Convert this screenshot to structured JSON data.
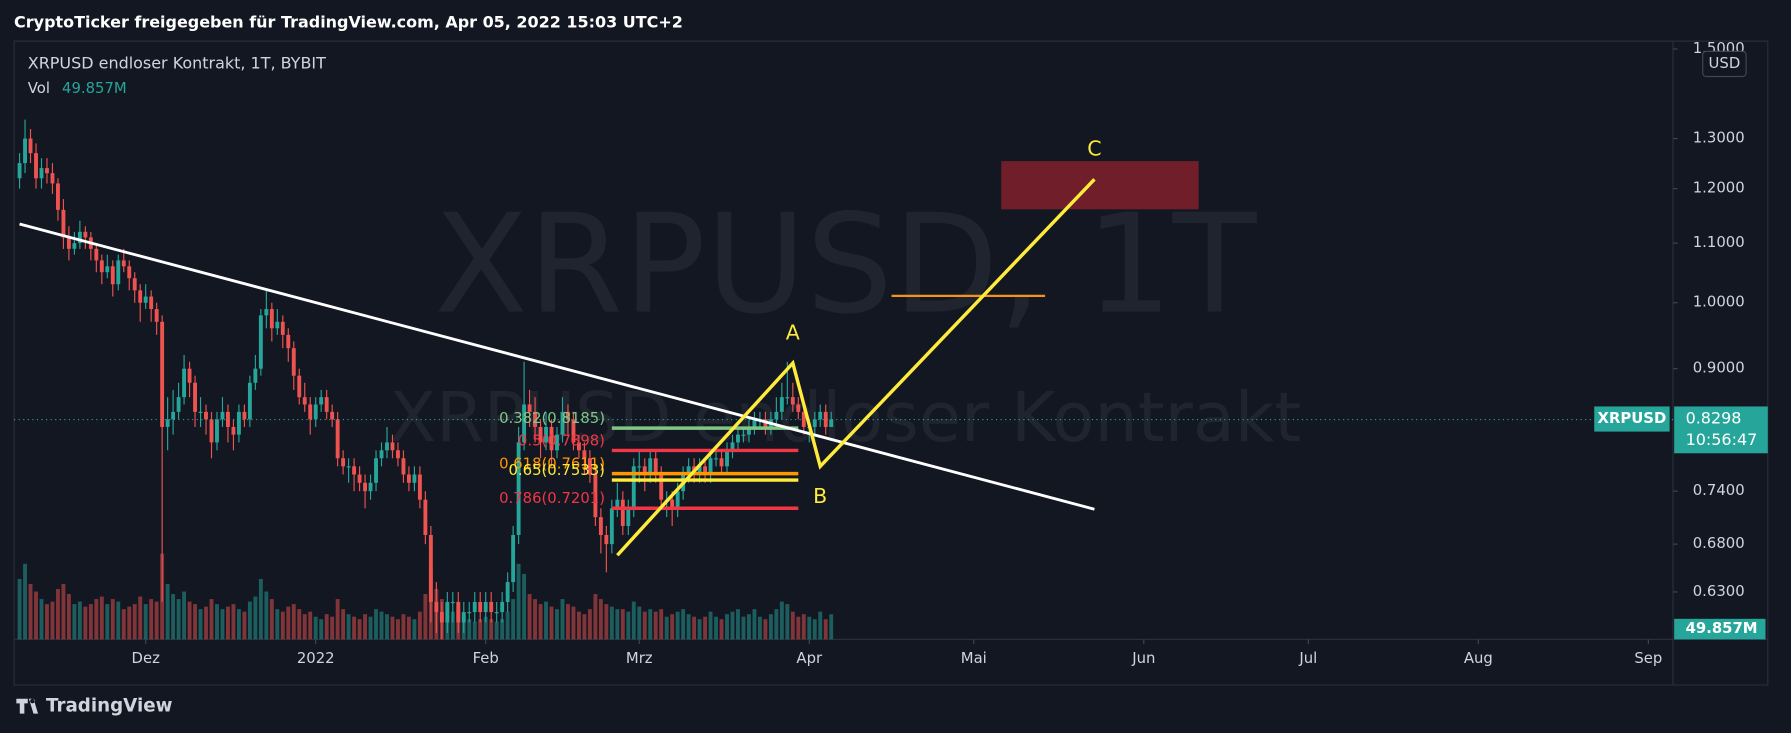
{
  "header": "CryptoTicker freigegeben für TradingView.com, Apr 05, 2022 15:03 UTC+2",
  "footer": "TradingView",
  "chart_data": {
    "type": "candlestick",
    "legend_title": "XRPUSD endloser Kontrakt, 1T, BYBIT",
    "volume_name": "Vol",
    "volume_label": "49.857M",
    "currency": "USD",
    "watermark": "XRPUSD, 1T",
    "watermark_sub": "XRPUSD endloser Kontrakt",
    "symbol": "XRPUSD",
    "last_price": 0.8298,
    "countdown": "10:56:47",
    "up_color": "#26a69a",
    "down_color": "#ef5350",
    "log": true,
    "grid": false,
    "xlim": [
      -24,
      278.5
    ],
    "ylim": [
      0.584,
      1.519
    ],
    "xticks": [
      {
        "value": 0,
        "label": "Dez"
      },
      {
        "value": 31,
        "label": "2022"
      },
      {
        "value": 62,
        "label": "Feb"
      },
      {
        "value": 90,
        "label": "Mrz"
      },
      {
        "value": 121,
        "label": "Apr"
      },
      {
        "value": 151,
        "label": "Mai"
      },
      {
        "value": 182,
        "label": "Jun"
      },
      {
        "value": 212,
        "label": "Jul"
      },
      {
        "value": 243,
        "label": "Aug"
      },
      {
        "value": 274,
        "label": "Sep"
      }
    ],
    "yticks": [
      {
        "value": 0.63,
        "label": "0.6300"
      },
      {
        "value": 0.68,
        "label": "0.6800"
      },
      {
        "value": 0.74,
        "label": "0.7400"
      },
      {
        "value": 0.9,
        "label": "0.9000"
      },
      {
        "value": 1.0,
        "label": "1.0000"
      },
      {
        "value": 1.1,
        "label": "1.1000"
      },
      {
        "value": 1.2,
        "label": "1.2000"
      },
      {
        "value": 1.3,
        "label": "1.3000"
      },
      {
        "value": 1.5,
        "label": "1.5000"
      }
    ],
    "x": [
      -23,
      -22,
      -21,
      -20,
      -19,
      -18,
      -17,
      -16,
      -15,
      -14,
      -13,
      -12,
      -11,
      -10,
      -9,
      -8,
      -7,
      -6,
      -5,
      -4,
      -3,
      -2,
      -1,
      0,
      1,
      2,
      3,
      4,
      5,
      6,
      7,
      8,
      9,
      10,
      11,
      12,
      13,
      14,
      15,
      16,
      17,
      18,
      19,
      20,
      21,
      22,
      23,
      24,
      25,
      26,
      27,
      28,
      29,
      30,
      31,
      32,
      33,
      34,
      35,
      36,
      37,
      38,
      39,
      40,
      41,
      42,
      43,
      44,
      45,
      46,
      47,
      48,
      49,
      50,
      51,
      52,
      53,
      54,
      55,
      56,
      57,
      58,
      59,
      60,
      61,
      62,
      63,
      64,
      65,
      66,
      67,
      68,
      69,
      70,
      71,
      72,
      73,
      74,
      75,
      76,
      77,
      78,
      79,
      80,
      81,
      82,
      83,
      84,
      85,
      86,
      87,
      88,
      89,
      90,
      91,
      92,
      93,
      94,
      95,
      96,
      97,
      98,
      99,
      100,
      101,
      102,
      103,
      104,
      105,
      106,
      107,
      108,
      109,
      110,
      111,
      112,
      113,
      114,
      115,
      116,
      117,
      118,
      119,
      120,
      121,
      122,
      123,
      124,
      125
    ],
    "ohlc": [
      [
        1.22,
        1.27,
        1.2,
        1.25
      ],
      [
        1.25,
        1.34,
        1.23,
        1.3
      ],
      [
        1.3,
        1.32,
        1.25,
        1.27
      ],
      [
        1.27,
        1.29,
        1.2,
        1.22
      ],
      [
        1.22,
        1.26,
        1.2,
        1.24
      ],
      [
        1.24,
        1.26,
        1.21,
        1.23
      ],
      [
        1.23,
        1.25,
        1.19,
        1.21
      ],
      [
        1.21,
        1.22,
        1.14,
        1.16
      ],
      [
        1.16,
        1.18,
        1.09,
        1.11
      ],
      [
        1.11,
        1.13,
        1.07,
        1.09
      ],
      [
        1.09,
        1.12,
        1.08,
        1.1
      ],
      [
        1.1,
        1.14,
        1.09,
        1.12
      ],
      [
        1.12,
        1.13,
        1.09,
        1.11
      ],
      [
        1.11,
        1.12,
        1.07,
        1.09
      ],
      [
        1.09,
        1.1,
        1.05,
        1.07
      ],
      [
        1.07,
        1.08,
        1.03,
        1.05
      ],
      [
        1.05,
        1.08,
        1.04,
        1.06
      ],
      [
        1.06,
        1.07,
        1.01,
        1.03
      ],
      [
        1.03,
        1.08,
        1.02,
        1.07
      ],
      [
        1.07,
        1.09,
        1.05,
        1.06
      ],
      [
        1.06,
        1.07,
        1.02,
        1.04
      ],
      [
        1.04,
        1.05,
        1.0,
        1.02
      ],
      [
        1.02,
        1.03,
        0.97,
        1.0
      ],
      [
        1.0,
        1.03,
        0.99,
        1.01
      ],
      [
        1.01,
        1.02,
        0.97,
        0.99
      ],
      [
        0.99,
        1.0,
        0.95,
        0.97
      ],
      [
        0.97,
        0.98,
        0.62,
        0.82
      ],
      [
        0.82,
        0.86,
        0.79,
        0.83
      ],
      [
        0.83,
        0.87,
        0.81,
        0.84
      ],
      [
        0.84,
        0.88,
        0.83,
        0.86
      ],
      [
        0.86,
        0.92,
        0.85,
        0.9
      ],
      [
        0.9,
        0.91,
        0.86,
        0.88
      ],
      [
        0.88,
        0.89,
        0.82,
        0.84
      ],
      [
        0.84,
        0.86,
        0.82,
        0.84
      ],
      [
        0.84,
        0.85,
        0.81,
        0.83
      ],
      [
        0.83,
        0.84,
        0.78,
        0.8
      ],
      [
        0.8,
        0.84,
        0.79,
        0.83
      ],
      [
        0.83,
        0.86,
        0.82,
        0.84
      ],
      [
        0.84,
        0.85,
        0.8,
        0.82
      ],
      [
        0.82,
        0.83,
        0.79,
        0.81
      ],
      [
        0.81,
        0.85,
        0.8,
        0.84
      ],
      [
        0.84,
        0.85,
        0.82,
        0.83
      ],
      [
        0.83,
        0.89,
        0.82,
        0.88
      ],
      [
        0.88,
        0.92,
        0.87,
        0.9
      ],
      [
        0.9,
        0.99,
        0.89,
        0.98
      ],
      [
        0.98,
        1.02,
        0.96,
        0.99
      ],
      [
        0.99,
        1.0,
        0.94,
        0.96
      ],
      [
        0.96,
        0.99,
        0.95,
        0.97
      ],
      [
        0.97,
        0.98,
        0.93,
        0.95
      ],
      [
        0.95,
        0.96,
        0.91,
        0.93
      ],
      [
        0.93,
        0.94,
        0.87,
        0.89
      ],
      [
        0.89,
        0.9,
        0.85,
        0.86
      ],
      [
        0.86,
        0.88,
        0.84,
        0.85
      ],
      [
        0.85,
        0.86,
        0.81,
        0.83
      ],
      [
        0.83,
        0.86,
        0.82,
        0.85
      ],
      [
        0.85,
        0.87,
        0.84,
        0.86
      ],
      [
        0.86,
        0.87,
        0.83,
        0.84
      ],
      [
        0.84,
        0.85,
        0.82,
        0.83
      ],
      [
        0.83,
        0.84,
        0.77,
        0.78
      ],
      [
        0.78,
        0.79,
        0.76,
        0.77
      ],
      [
        0.77,
        0.78,
        0.75,
        0.77
      ],
      [
        0.77,
        0.78,
        0.74,
        0.76
      ],
      [
        0.76,
        0.77,
        0.74,
        0.75
      ],
      [
        0.75,
        0.76,
        0.72,
        0.74
      ],
      [
        0.74,
        0.76,
        0.73,
        0.75
      ],
      [
        0.75,
        0.79,
        0.74,
        0.78
      ],
      [
        0.78,
        0.8,
        0.77,
        0.79
      ],
      [
        0.79,
        0.82,
        0.78,
        0.8
      ],
      [
        0.8,
        0.81,
        0.78,
        0.79
      ],
      [
        0.79,
        0.8,
        0.77,
        0.78
      ],
      [
        0.78,
        0.79,
        0.75,
        0.76
      ],
      [
        0.76,
        0.77,
        0.74,
        0.75
      ],
      [
        0.75,
        0.77,
        0.74,
        0.76
      ],
      [
        0.76,
        0.77,
        0.72,
        0.73
      ],
      [
        0.73,
        0.74,
        0.68,
        0.69
      ],
      [
        0.69,
        0.7,
        0.6,
        0.62
      ],
      [
        0.62,
        0.64,
        0.59,
        0.61
      ],
      [
        0.61,
        0.62,
        0.56,
        0.6
      ],
      [
        0.6,
        0.63,
        0.59,
        0.62
      ],
      [
        0.62,
        0.63,
        0.6,
        0.62
      ],
      [
        0.62,
        0.63,
        0.59,
        0.6
      ],
      [
        0.6,
        0.62,
        0.59,
        0.61
      ],
      [
        0.61,
        0.62,
        0.6,
        0.61
      ],
      [
        0.61,
        0.63,
        0.6,
        0.62
      ],
      [
        0.62,
        0.63,
        0.6,
        0.61
      ],
      [
        0.61,
        0.63,
        0.6,
        0.62
      ],
      [
        0.62,
        0.63,
        0.6,
        0.61
      ],
      [
        0.61,
        0.62,
        0.6,
        0.61
      ],
      [
        0.61,
        0.63,
        0.6,
        0.62
      ],
      [
        0.62,
        0.65,
        0.61,
        0.64
      ],
      [
        0.64,
        0.7,
        0.63,
        0.69
      ],
      [
        0.69,
        0.82,
        0.68,
        0.8
      ],
      [
        0.8,
        0.91,
        0.79,
        0.85
      ],
      [
        0.85,
        0.87,
        0.82,
        0.84
      ],
      [
        0.84,
        0.86,
        0.8,
        0.82
      ],
      [
        0.82,
        0.83,
        0.78,
        0.8
      ],
      [
        0.8,
        0.84,
        0.79,
        0.82
      ],
      [
        0.82,
        0.83,
        0.77,
        0.79
      ],
      [
        0.79,
        0.82,
        0.78,
        0.81
      ],
      [
        0.81,
        0.86,
        0.8,
        0.84
      ],
      [
        0.84,
        0.85,
        0.81,
        0.83
      ],
      [
        0.83,
        0.84,
        0.79,
        0.8
      ],
      [
        0.8,
        0.81,
        0.78,
        0.79
      ],
      [
        0.79,
        0.8,
        0.76,
        0.78
      ],
      [
        0.78,
        0.79,
        0.75,
        0.76
      ],
      [
        0.76,
        0.77,
        0.7,
        0.71
      ],
      [
        0.71,
        0.72,
        0.67,
        0.69
      ],
      [
        0.69,
        0.7,
        0.65,
        0.68
      ],
      [
        0.68,
        0.73,
        0.67,
        0.72
      ],
      [
        0.72,
        0.75,
        0.71,
        0.73
      ],
      [
        0.73,
        0.74,
        0.69,
        0.7
      ],
      [
        0.7,
        0.73,
        0.69,
        0.72
      ],
      [
        0.72,
        0.78,
        0.71,
        0.77
      ],
      [
        0.77,
        0.79,
        0.75,
        0.77
      ],
      [
        0.77,
        0.78,
        0.74,
        0.76
      ],
      [
        0.76,
        0.79,
        0.75,
        0.78
      ],
      [
        0.78,
        0.79,
        0.75,
        0.76
      ],
      [
        0.76,
        0.77,
        0.72,
        0.73
      ],
      [
        0.73,
        0.74,
        0.71,
        0.73
      ],
      [
        0.73,
        0.74,
        0.7,
        0.72
      ],
      [
        0.72,
        0.75,
        0.71,
        0.74
      ],
      [
        0.74,
        0.77,
        0.73,
        0.76
      ],
      [
        0.76,
        0.78,
        0.75,
        0.77
      ],
      [
        0.77,
        0.78,
        0.75,
        0.76
      ],
      [
        0.76,
        0.78,
        0.75,
        0.77
      ],
      [
        0.77,
        0.78,
        0.75,
        0.76
      ],
      [
        0.76,
        0.79,
        0.75,
        0.78
      ],
      [
        0.78,
        0.79,
        0.77,
        0.78
      ],
      [
        0.78,
        0.79,
        0.76,
        0.77
      ],
      [
        0.77,
        0.8,
        0.76,
        0.79
      ],
      [
        0.79,
        0.81,
        0.78,
        0.8
      ],
      [
        0.8,
        0.82,
        0.79,
        0.81
      ],
      [
        0.81,
        0.82,
        0.8,
        0.81
      ],
      [
        0.81,
        0.83,
        0.8,
        0.82
      ],
      [
        0.82,
        0.84,
        0.81,
        0.83
      ],
      [
        0.83,
        0.84,
        0.82,
        0.83
      ],
      [
        0.83,
        0.84,
        0.81,
        0.82
      ],
      [
        0.82,
        0.84,
        0.81,
        0.83
      ],
      [
        0.83,
        0.86,
        0.82,
        0.84
      ],
      [
        0.84,
        0.88,
        0.83,
        0.86
      ],
      [
        0.86,
        0.91,
        0.85,
        0.86
      ],
      [
        0.86,
        0.88,
        0.84,
        0.85
      ],
      [
        0.85,
        0.86,
        0.83,
        0.84
      ],
      [
        0.84,
        0.85,
        0.81,
        0.82
      ],
      [
        0.82,
        0.83,
        0.8,
        0.82
      ],
      [
        0.82,
        0.84,
        0.81,
        0.83
      ],
      [
        0.83,
        0.85,
        0.82,
        0.84
      ],
      [
        0.84,
        0.85,
        0.81,
        0.82
      ],
      [
        0.82,
        0.84,
        0.82,
        0.8298
      ]
    ],
    "volumes": [
      120,
      150,
      110,
      95,
      80,
      70,
      75,
      100,
      110,
      90,
      70,
      75,
      65,
      70,
      80,
      85,
      70,
      80,
      75,
      60,
      65,
      70,
      85,
      70,
      80,
      75,
      170,
      110,
      90,
      80,
      95,
      75,
      70,
      60,
      65,
      80,
      70,
      60,
      65,
      70,
      60,
      55,
      75,
      85,
      120,
      95,
      80,
      60,
      55,
      65,
      70,
      60,
      50,
      55,
      45,
      40,
      50,
      45,
      80,
      60,
      50,
      45,
      40,
      50,
      45,
      60,
      55,
      50,
      45,
      40,
      50,
      45,
      40,
      55,
      90,
      140,
      100,
      80,
      70,
      55,
      60,
      45,
      40,
      35,
      40,
      45,
      40,
      35,
      40,
      55,
      80,
      150,
      130,
      90,
      80,
      70,
      75,
      65,
      60,
      80,
      70,
      65,
      55,
      50,
      60,
      90,
      80,
      70,
      65,
      60,
      60,
      55,
      75,
      65,
      55,
      60,
      55,
      60,
      45,
      50,
      55,
      60,
      50,
      45,
      40,
      45,
      55,
      45,
      40,
      50,
      55,
      60,
      45,
      50,
      60,
      45,
      40,
      50,
      60,
      75,
      70,
      55,
      45,
      50,
      45,
      40,
      55,
      40,
      49.857
    ],
    "trendline": {
      "x": [
        -23,
        173
      ],
      "y": [
        1.134,
        0.719
      ],
      "color": "#ffffff"
    },
    "wave": {
      "x": [
        86,
        118,
        123,
        173
      ],
      "y": [
        0.668,
        0.908,
        0.77,
        1.218
      ],
      "labels": [
        null,
        "A",
        "B",
        "C"
      ],
      "color": "#ffeb3b"
    },
    "target_zone": {
      "x": [
        156,
        192
      ],
      "y": [
        1.161,
        1.254
      ],
      "color": "#7a1f2b"
    },
    "level_line": {
      "x": [
        136,
        164
      ],
      "y": 1.011,
      "color": "#f7931a"
    },
    "fib": {
      "x": [
        85,
        119
      ],
      "levels": [
        {
          "label": "0.382(0.8185)",
          "value": 0.8185,
          "color": "#81c784"
        },
        {
          "label": "0.5(0.7898)",
          "value": 0.7898,
          "color": "#f23645"
        },
        {
          "label": "0.618(0.7611)",
          "value": 0.7611,
          "color": "#ff9800"
        },
        {
          "label": "0.65(0.7533)",
          "value": 0.7533,
          "color": "#ffeb3b"
        },
        {
          "label": "0.786(0.7201)",
          "value": 0.7201,
          "color": "#f23645"
        }
      ]
    }
  }
}
